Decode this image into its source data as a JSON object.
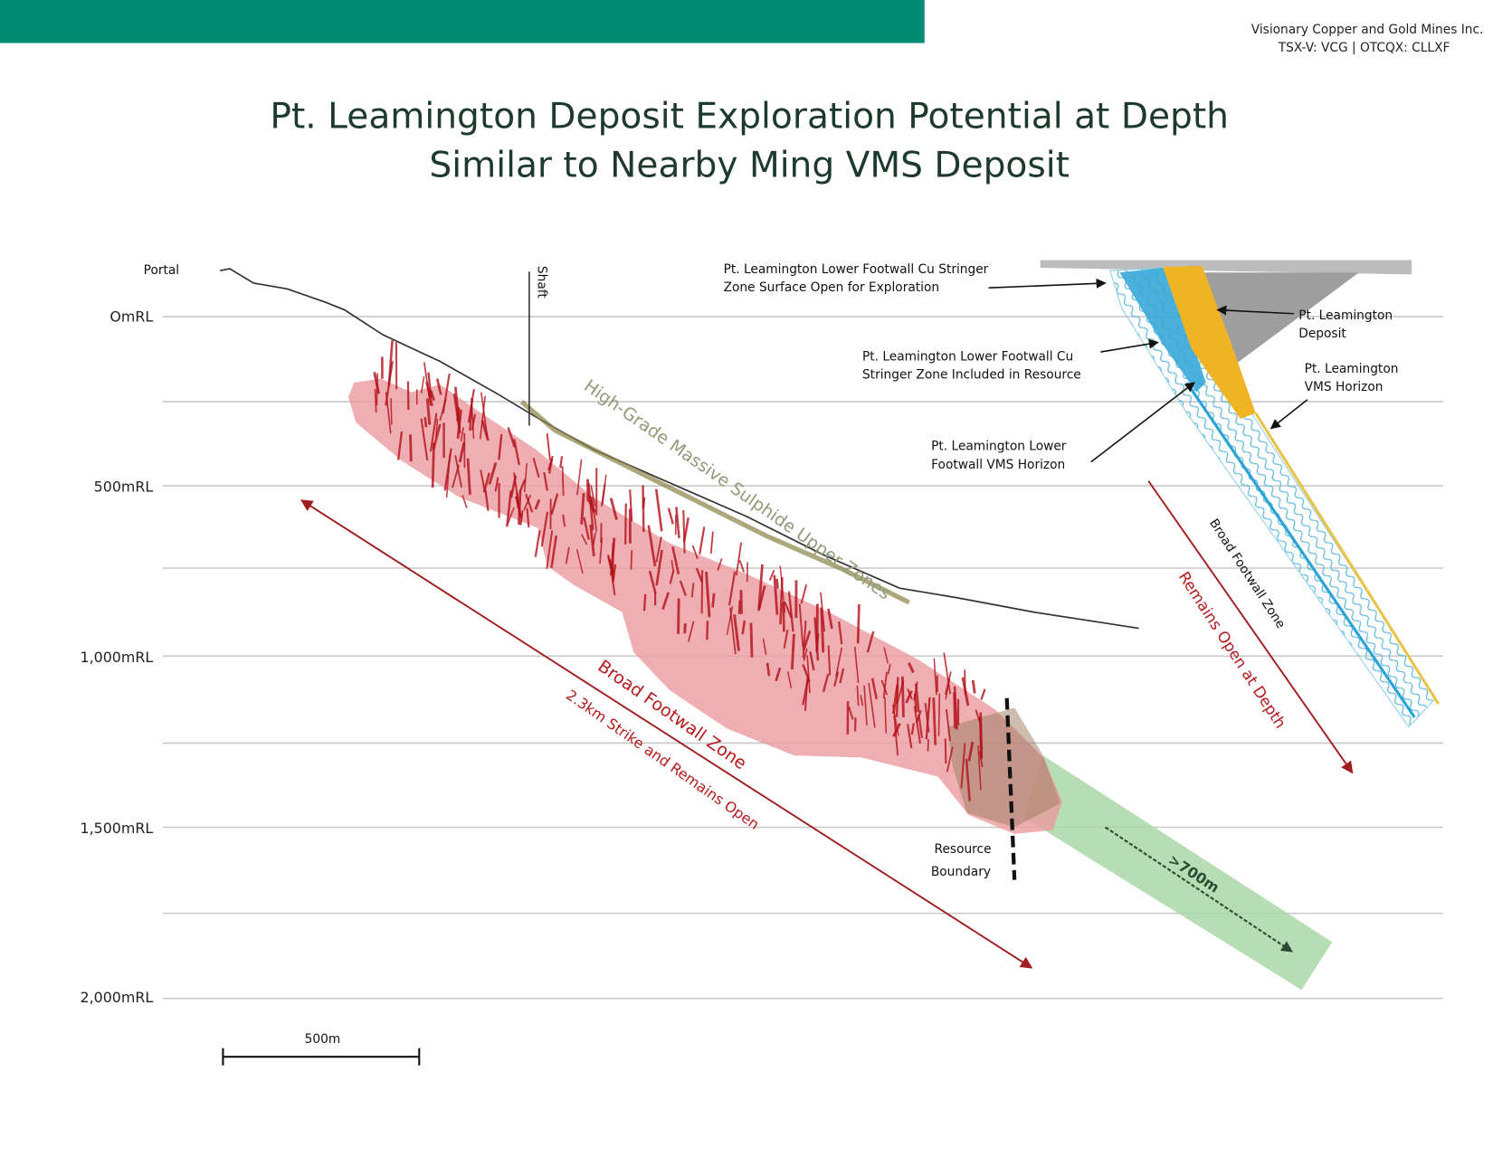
{
  "header": {
    "company": "Visionary Copper and Gold Mines Inc.",
    "ticker": "TSX-V: VCG | OTCQX: CLLXF"
  },
  "title": [
    "Pt. Leamington Deposit Exploration Potential at Depth",
    "Similar to Nearby Ming VMS Deposit"
  ],
  "depth_labels": [
    "OmRL",
    "500mRL",
    "1,000mRL",
    "1,500mRL",
    "2,000mRL"
  ],
  "section": {
    "portal": "Portal",
    "shaft": "Shaft",
    "upper_zones": "High-Grade Massive Sulphide Upper Zones",
    "footwall_zone": "Broad Footwall Zone",
    "strike": "2.3km Strike and Remains Open",
    "resource_boundary": [
      "Resource",
      "Boundary"
    ],
    "extension": ">700m",
    "scale_bar": "500m"
  },
  "inset": {
    "surface_open": [
      "Pt. Leamington Lower Footwall Cu Stringer",
      "Zone Surface Open for Exploration"
    ],
    "included": [
      "Pt. Leamington Lower Footwall Cu",
      "Stringer Zone Included in Resource"
    ],
    "lower_vms": [
      "Pt. Leamington Lower",
      "Footwall VMS Horizon"
    ],
    "deposit": [
      "Pt. Leamington",
      "Deposit"
    ],
    "vms": [
      "Pt. Leamington",
      "VMS Horizon"
    ],
    "footwall_zone": "Broad Footwall Zone",
    "open_depth": "Remains Open at Depth"
  }
}
